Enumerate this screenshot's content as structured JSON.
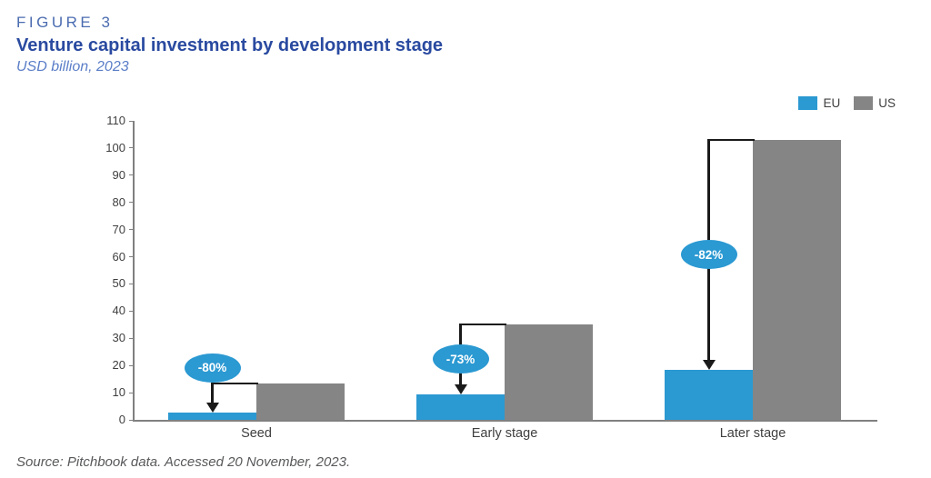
{
  "figure": {
    "label": "FIGURE 3",
    "title": "Venture capital investment by development stage",
    "subtitle": "USD billion, 2023",
    "source": "Source: Pitchbook data. Accessed 20 November, 2023."
  },
  "legend": {
    "items": [
      {
        "label": "EU",
        "color": "#2B99D2"
      },
      {
        "label": "US",
        "color": "#858585"
      }
    ]
  },
  "chart_data": {
    "type": "bar",
    "title": "Venture capital investment by development stage",
    "subtitle": "USD billion, 2023",
    "unit": "USD billion",
    "year": "2023",
    "categories": [
      "Seed",
      "Early stage",
      "Later stage"
    ],
    "series": [
      {
        "name": "EU",
        "color": "#2B99D2",
        "values": [
          2.7,
          9.5,
          18.5
        ]
      },
      {
        "name": "US",
        "color": "#858585",
        "values": [
          13.5,
          35,
          103
        ]
      }
    ],
    "annotations": [
      {
        "category": "Seed",
        "label": "-80%"
      },
      {
        "category": "Early stage",
        "label": "-73%"
      },
      {
        "category": "Later stage",
        "label": "-82%"
      }
    ],
    "ylim": [
      0,
      110
    ],
    "yticks": [
      0,
      10,
      20,
      30,
      40,
      50,
      60,
      70,
      80,
      90,
      100,
      110
    ],
    "grid": false,
    "legend_position": "top-right",
    "badge_color": "#2B99D2",
    "badge_text_color": "#FFFFFF",
    "axis_color": "#808080"
  }
}
